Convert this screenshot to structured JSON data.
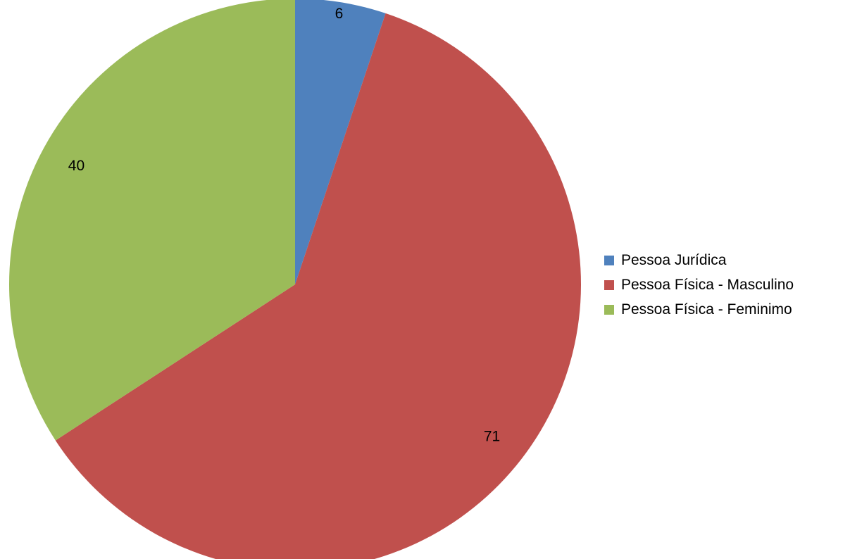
{
  "chart_data": {
    "type": "pie",
    "categories": [
      "Pessoa Jurídica",
      "Pessoa Física - Masculino",
      "Pessoa Física - Feminimo"
    ],
    "values": [
      6,
      71,
      40
    ],
    "colors": [
      "#4f81bd",
      "#c0504d",
      "#9bbb59"
    ],
    "start_angle_deg": 0,
    "direction": "clockwise",
    "data_labels": [
      "6",
      "71",
      "40"
    ],
    "legend": {
      "position": "right",
      "items": [
        {
          "label": "Pessoa Jurídica",
          "color": "#4f81bd"
        },
        {
          "label": "Pessoa Física - Masculino",
          "color": "#c0504d"
        },
        {
          "label": "Pessoa Física - Feminimo",
          "color": "#9bbb59"
        }
      ]
    }
  }
}
